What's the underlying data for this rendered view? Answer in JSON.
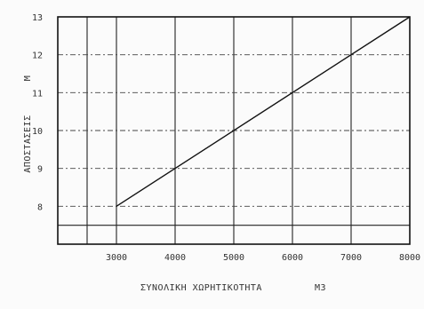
{
  "chart_data": {
    "type": "line",
    "title": "",
    "xlabel": "ΣΥΝΟΛΙΚΗ ΧΩΡΗΤΙΚΟΤΗΤΑ",
    "xunit": "M3",
    "ylabel": "ΑΠΟΣΤΑΣΕΙΣ",
    "yunit": "M",
    "xlim": [
      2000,
      8000
    ],
    "ylim": [
      7,
      13
    ],
    "x_ticks": [
      "3000",
      "4000",
      "5000",
      "6000",
      "7000",
      "8000"
    ],
    "y_ticks": [
      "8",
      "9",
      "10",
      "11",
      "12",
      "13"
    ],
    "grid": true,
    "series": [
      {
        "x": [
          3000,
          8000
        ],
        "y": [
          8,
          13
        ]
      }
    ]
  }
}
